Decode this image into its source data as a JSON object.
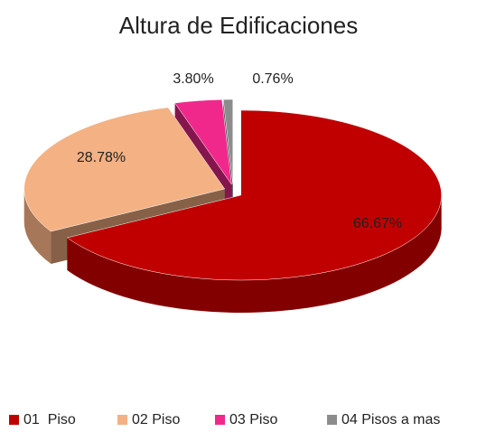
{
  "chart_data": {
    "type": "pie",
    "title": "Altura de Edificaciones",
    "categories": [
      "01  Piso",
      "02 Piso",
      "03 Piso",
      "04 Pisos a mas"
    ],
    "values": [
      66.67,
      28.78,
      3.8,
      0.76
    ],
    "value_labels": [
      "66.67%",
      "28.78%",
      "3.80%",
      "0.76%"
    ],
    "colors": [
      "#c00000",
      "#f4b183",
      "#f0288c",
      "#8c8c8c"
    ],
    "legend": "bottom"
  }
}
